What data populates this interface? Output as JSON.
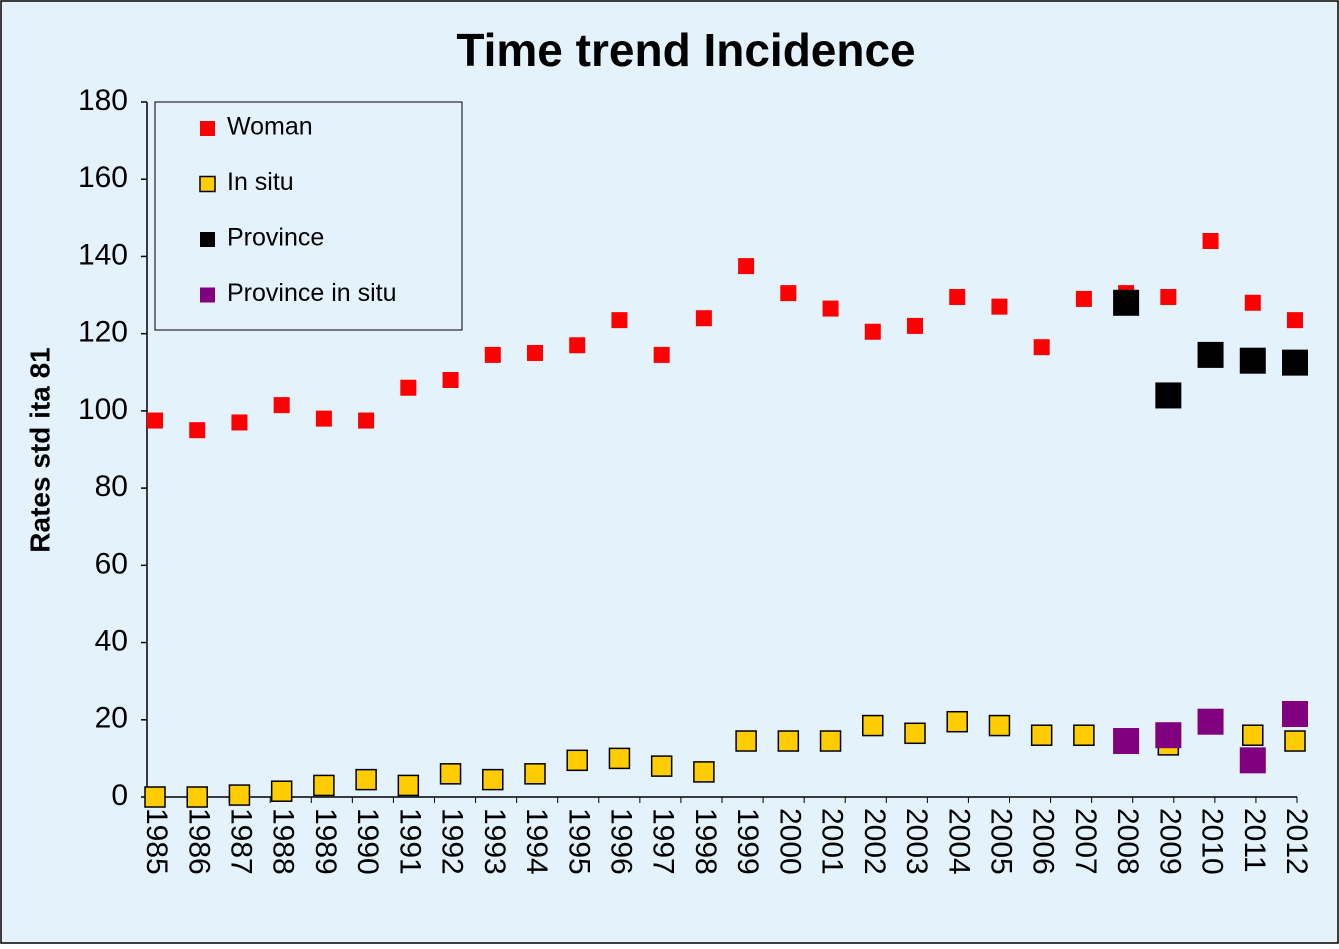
{
  "chart_data": {
    "type": "scatter",
    "title": "Time trend Incidence",
    "y_label": "Rates std ita 81",
    "categories": [
      "1985",
      "1986",
      "1987",
      "1988",
      "1989",
      "1990",
      "1991",
      "1992",
      "1993",
      "1994",
      "1995",
      "1996",
      "1997",
      "1998",
      "1999",
      "2000",
      "2001",
      "2002",
      "2003",
      "2004",
      "2005",
      "2006",
      "2007",
      "2008",
      "2009",
      "2010",
      "2011",
      "2012"
    ],
    "series": [
      {
        "name": "Woman",
        "color": "#ff0000",
        "values": [
          97.5,
          95,
          97,
          101.5,
          98,
          97.5,
          106,
          108,
          114.5,
          115,
          117,
          123.5,
          114.5,
          124,
          137.5,
          130.5,
          126.5,
          120.5,
          122,
          129.5,
          127,
          116.5,
          129,
          130.5,
          129.5,
          144,
          128,
          123.5
        ]
      },
      {
        "name": "In situ",
        "color": "#ffcc00",
        "values": [
          0,
          0,
          0.5,
          1.5,
          3,
          4.5,
          3,
          6,
          4.5,
          6,
          9.5,
          10,
          8,
          6.5,
          14.5,
          14.5,
          14.5,
          18.5,
          16.5,
          19.5,
          18.5,
          16,
          16,
          14.5,
          13.5,
          19.5,
          16,
          14.5
        ]
      },
      {
        "name": "Province",
        "color": "#000000",
        "values": [
          null,
          null,
          null,
          null,
          null,
          null,
          null,
          null,
          null,
          null,
          null,
          null,
          null,
          null,
          null,
          null,
          null,
          null,
          null,
          null,
          null,
          null,
          null,
          128,
          104,
          114.5,
          113,
          112.5
        ]
      },
      {
        "name": "Province in situ",
        "color": "#800080",
        "values": [
          null,
          null,
          null,
          null,
          null,
          null,
          null,
          null,
          null,
          null,
          null,
          null,
          null,
          null,
          null,
          null,
          null,
          null,
          null,
          null,
          null,
          null,
          null,
          14.5,
          16,
          19.5,
          9.5,
          21.5
        ]
      }
    ],
    "ylim": [
      0,
      180
    ],
    "yticks": [
      0,
      20,
      40,
      60,
      80,
      100,
      120,
      140,
      160,
      180
    ],
    "grid": false,
    "legend": "upper left"
  }
}
